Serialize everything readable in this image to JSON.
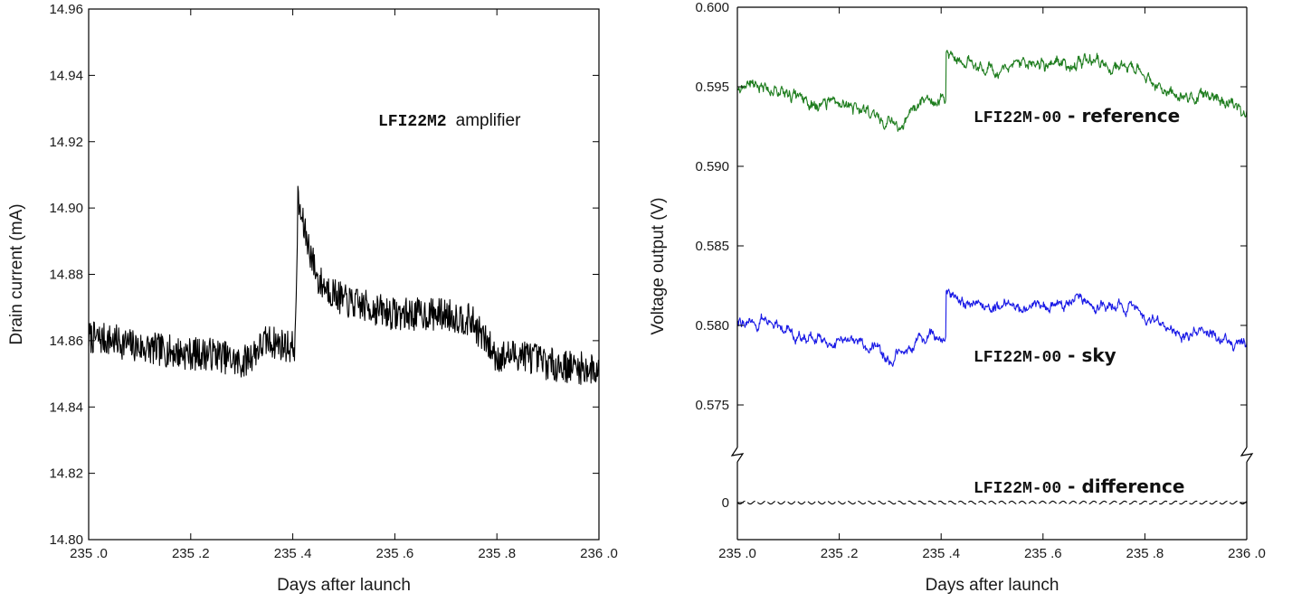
{
  "chart_data": [
    {
      "type": "line",
      "title": "",
      "xlabel": "Days after launch",
      "ylabel": "Drain current (mA)",
      "xlim": [
        235.0,
        236.0
      ],
      "ylim": [
        14.8,
        14.96
      ],
      "x_ticks": [
        "235 .0",
        "235 .2",
        "235 .4",
        "235 .6",
        "235 .8",
        "236 .0"
      ],
      "y_ticks": [
        "14.80",
        "14.82",
        "14.84",
        "14.86",
        "14.88",
        "14.90",
        "14.92",
        "14.94",
        "14.96"
      ],
      "annotation": {
        "mono": "LFI22M2",
        "text": "amplifier"
      },
      "grid": false,
      "series": [
        {
          "color": "#000000",
          "noise": 0.005,
          "x": [
            235.0,
            235.05,
            235.1,
            235.15,
            235.2,
            235.25,
            235.3,
            235.35,
            235.4,
            235.405,
            235.41,
            235.42,
            235.45,
            235.5,
            235.6,
            235.7,
            235.75,
            235.8,
            235.85,
            235.9,
            235.95,
            236.0
          ],
          "y": [
            14.861,
            14.86,
            14.858,
            14.857,
            14.856,
            14.856,
            14.853,
            14.86,
            14.858,
            14.859,
            14.902,
            14.895,
            14.878,
            14.872,
            14.868,
            14.868,
            14.866,
            14.855,
            14.856,
            14.853,
            14.852,
            14.851
          ]
        }
      ]
    },
    {
      "type": "line",
      "title": "",
      "xlabel": "Days after launch",
      "ylabel": "Voltage output (V)",
      "xlim": [
        235.0,
        236.0
      ],
      "ylim": [
        0.57,
        0.6
      ],
      "axis_break": true,
      "x_ticks": [
        "235 .0",
        "235 .2",
        "235 .4",
        "235 .6",
        "235 .8",
        "236 .0"
      ],
      "y_ticks": [
        "0.575",
        "0.580",
        "0.585",
        "0.590",
        "0.595",
        "0.600",
        "0"
      ],
      "grid": false,
      "series": [
        {
          "label_mono": "LFI22M-00",
          "label_rest": " - reference",
          "color": "#1e7d1e",
          "noise": 0.00045,
          "x": [
            235.0,
            235.05,
            235.1,
            235.13,
            235.2,
            235.25,
            235.3,
            235.33,
            235.36,
            235.4,
            235.409,
            235.41,
            235.45,
            235.5,
            235.6,
            235.7,
            235.78,
            235.8,
            235.85,
            235.9,
            235.95,
            236.0
          ],
          "y": [
            0.5951,
            0.5951,
            0.5948,
            0.594,
            0.5938,
            0.5936,
            0.5928,
            0.5928,
            0.594,
            0.5943,
            0.5943,
            0.5972,
            0.5964,
            0.5962,
            0.5964,
            0.5965,
            0.5961,
            0.5955,
            0.5947,
            0.5944,
            0.5942,
            0.5936
          ]
        },
        {
          "label_mono": "LFI22M-00",
          "label_rest": " - sky",
          "color": "#1a1ae6",
          "noise": 0.0004,
          "x": [
            235.0,
            235.05,
            235.1,
            235.13,
            235.2,
            235.25,
            235.3,
            235.33,
            235.36,
            235.4,
            235.409,
            235.41,
            235.45,
            235.5,
            235.6,
            235.7,
            235.78,
            235.8,
            235.85,
            235.9,
            235.95,
            236.0
          ],
          "y": [
            0.5802,
            0.5802,
            0.58,
            0.5791,
            0.5792,
            0.5788,
            0.5778,
            0.578,
            0.5794,
            0.5795,
            0.5795,
            0.5822,
            0.5812,
            0.5812,
            0.5813,
            0.5814,
            0.5812,
            0.5805,
            0.5797,
            0.5796,
            0.5793,
            0.5788
          ]
        },
        {
          "label_mono": "LFI22M-00",
          "label_rest": " - difference",
          "color": "#000000",
          "y": [
            0,
            0
          ]
        }
      ]
    }
  ]
}
